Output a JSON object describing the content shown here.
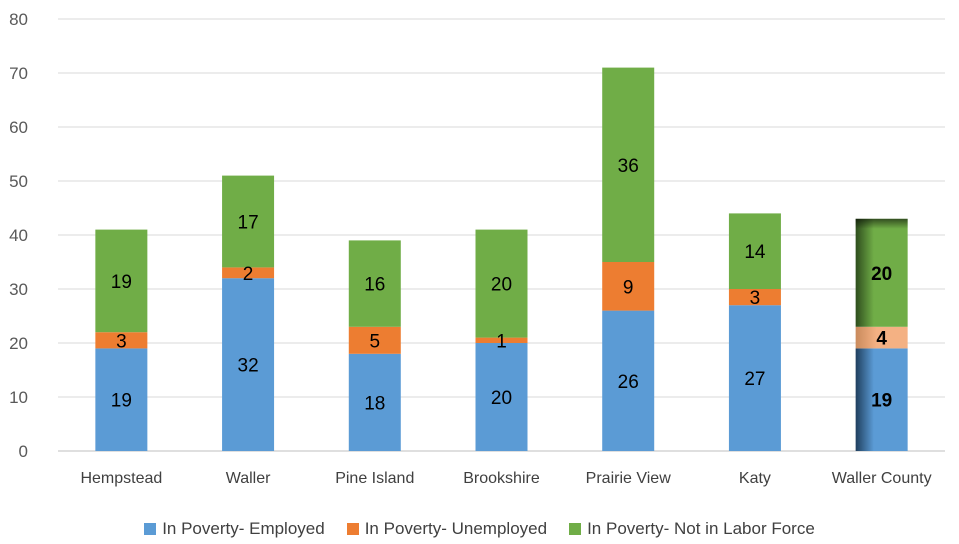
{
  "chart_data": {
    "type": "bar",
    "stacked": true,
    "categories": [
      "Hempstead",
      "Waller",
      "Pine Island",
      "Brookshire",
      "Prairie View",
      "Katy",
      "Waller County"
    ],
    "series": [
      {
        "name": "In Poverty- Employed",
        "color": "#5b9bd5",
        "values": [
          19,
          32,
          18,
          20,
          26,
          27,
          19
        ]
      },
      {
        "name": "In Poverty- Unemployed",
        "color": "#ed7d31",
        "values": [
          3,
          2,
          5,
          1,
          9,
          3,
          4
        ]
      },
      {
        "name": "In Poverty- Not in Labor Force",
        "color": "#70ad47",
        "values": [
          19,
          17,
          16,
          20,
          36,
          14,
          20
        ]
      }
    ],
    "ylim": [
      0,
      80
    ],
    "yticks": [
      0,
      10,
      20,
      30,
      40,
      50,
      60,
      70,
      80
    ],
    "grid": true,
    "legend": "bottom",
    "highlight_category": "Waller County"
  }
}
